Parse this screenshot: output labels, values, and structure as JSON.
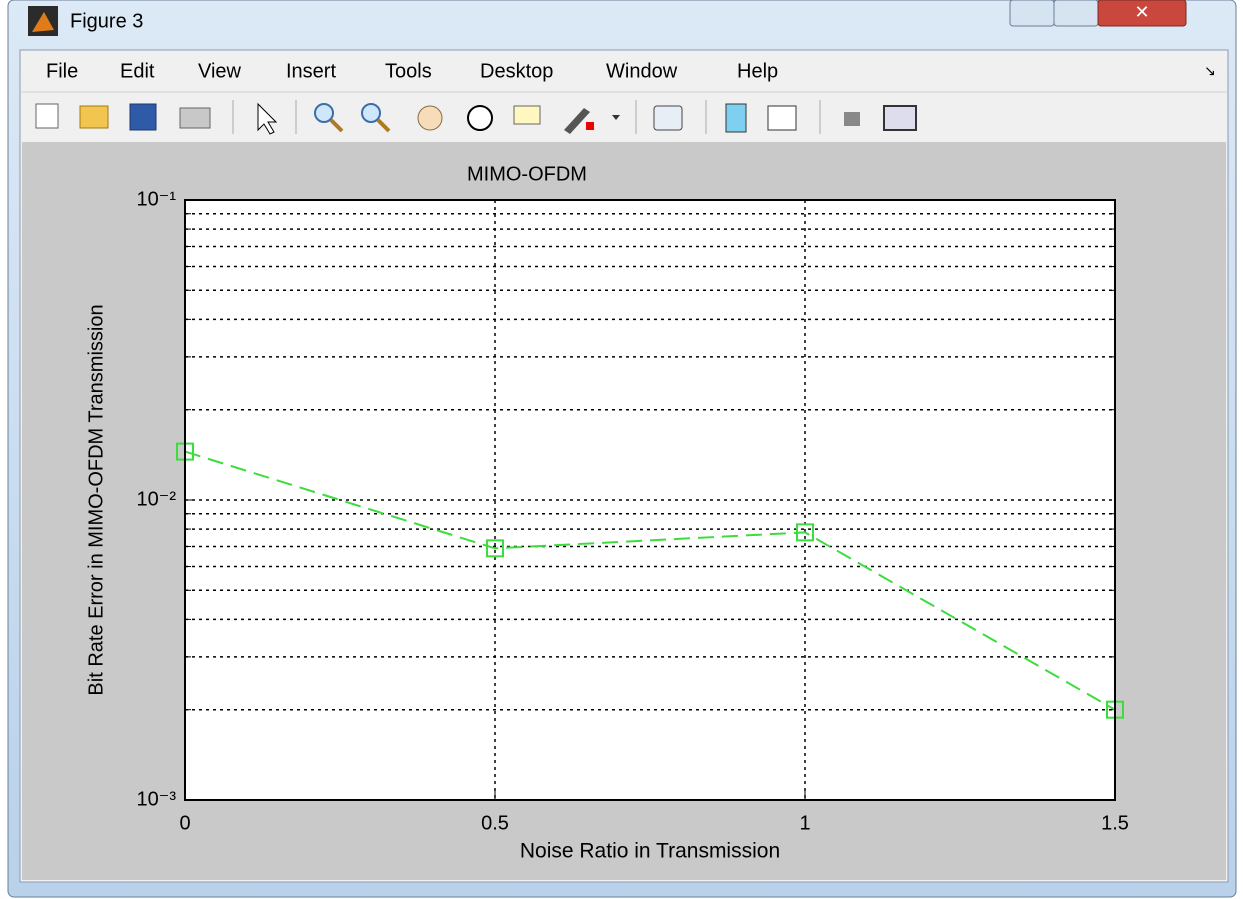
{
  "window": {
    "title": "Figure 3",
    "menu": [
      "File",
      "Edit",
      "View",
      "Insert",
      "Tools",
      "Desktop",
      "Window",
      "Help"
    ]
  },
  "chart_data": {
    "type": "line",
    "title": "MIMO-OFDM",
    "x_label": "Noise Ratio in Transmission",
    "y_label": "Bit Rate Error in MIMO-OFDM Transmission",
    "x": [
      0,
      0.5,
      1,
      1.5
    ],
    "values": [
      0.0145,
      0.0069,
      0.0078,
      0.002
    ],
    "color": "#3ddc3d",
    "xlim": [
      0,
      1.5
    ],
    "xticks": [
      0,
      0.5,
      1,
      1.5
    ],
    "ylim": [
      0.001,
      0.1
    ],
    "yscale": "log",
    "yticks": [
      {
        "value": 0.001,
        "label": "10⁻³"
      },
      {
        "value": 0.01,
        "label": "10⁻²"
      },
      {
        "value": 0.1,
        "label": "10⁻¹"
      }
    ],
    "yminorticks": [
      0.002,
      0.003,
      0.004,
      0.005,
      0.006,
      0.007,
      0.008,
      0.009,
      0.02,
      0.03,
      0.04,
      0.05,
      0.06,
      0.07,
      0.08,
      0.09
    ],
    "grid": true
  }
}
